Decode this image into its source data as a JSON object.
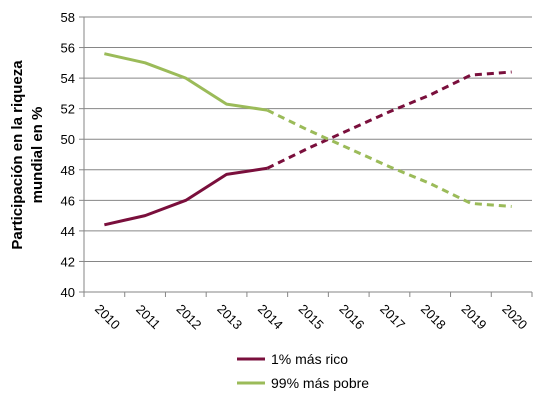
{
  "chart_data": {
    "type": "line",
    "title": "",
    "xlabel": "",
    "ylabel_lines": [
      "Participación en la riqueza",
      "mundial en %"
    ],
    "categories": [
      "2010",
      "2011",
      "2012",
      "2013",
      "2014",
      "2015",
      "2016",
      "2017",
      "2018",
      "2019",
      "2020"
    ],
    "y_ticks": [
      "40",
      "42",
      "44",
      "46",
      "48",
      "50",
      "52",
      "54",
      "56",
      "58"
    ],
    "ylim": [
      40,
      58
    ],
    "grid": true,
    "legend_position": "bottom",
    "series": [
      {
        "name": "1% más rico",
        "color": "#7a0f3c",
        "values": [
          44.4,
          45.0,
          46.0,
          47.7,
          48.1,
          49.4,
          50.6,
          51.8,
          52.9,
          54.2,
          54.4
        ],
        "projection_from_index": 4
      },
      {
        "name": "99% más pobre",
        "color": "#9bbb59",
        "values": [
          55.6,
          55.0,
          54.0,
          52.3,
          51.9,
          50.6,
          49.4,
          48.2,
          47.1,
          45.8,
          45.6
        ],
        "projection_from_index": 4
      }
    ]
  }
}
